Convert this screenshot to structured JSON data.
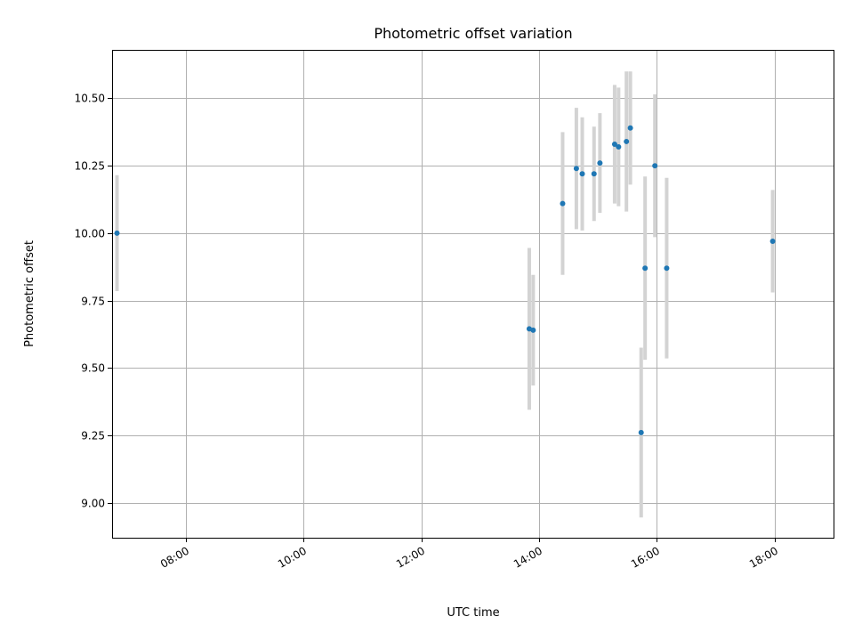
{
  "chart_data": {
    "type": "scatter",
    "title": "Photometric offset variation",
    "xlabel": "UTC time",
    "ylabel": "Photometric offset",
    "xlim": [
      "06:45",
      "19:00"
    ],
    "ylim": [
      8.87,
      10.68
    ],
    "x_ticks": [
      "08:00",
      "10:00",
      "12:00",
      "14:00",
      "16:00",
      "18:00"
    ],
    "y_ticks": [
      "9.00",
      "9.25",
      "9.50",
      "9.75",
      "10.00",
      "10.25",
      "10.50"
    ],
    "grid": true,
    "colors": {
      "marker": "#1f77b4",
      "errorbar": "#d3d3d3"
    },
    "points": [
      {
        "x": "06:50",
        "y": 10.0,
        "err": 0.215
      },
      {
        "x": "13:50",
        "y": 9.645,
        "err": 0.3
      },
      {
        "x": "13:54",
        "y": 9.64,
        "err": 0.205
      },
      {
        "x": "14:24",
        "y": 10.11,
        "err": 0.265
      },
      {
        "x": "14:38",
        "y": 10.24,
        "err": 0.225
      },
      {
        "x": "14:44",
        "y": 10.22,
        "err": 0.21
      },
      {
        "x": "14:56",
        "y": 10.22,
        "err": 0.175
      },
      {
        "x": "15:02",
        "y": 10.26,
        "err": 0.185
      },
      {
        "x": "15:17",
        "y": 10.33,
        "err": 0.22
      },
      {
        "x": "15:21",
        "y": 10.32,
        "err": 0.22
      },
      {
        "x": "15:29",
        "y": 10.34,
        "err": 0.26
      },
      {
        "x": "15:33",
        "y": 10.39,
        "err": 0.21
      },
      {
        "x": "15:44",
        "y": 9.26,
        "err": 0.315
      },
      {
        "x": "15:48",
        "y": 9.87,
        "err": 0.34
      },
      {
        "x": "15:58",
        "y": 10.25,
        "err": 0.265
      },
      {
        "x": "16:10",
        "y": 9.87,
        "err": 0.335
      },
      {
        "x": "17:58",
        "y": 9.97,
        "err": 0.19
      }
    ]
  }
}
